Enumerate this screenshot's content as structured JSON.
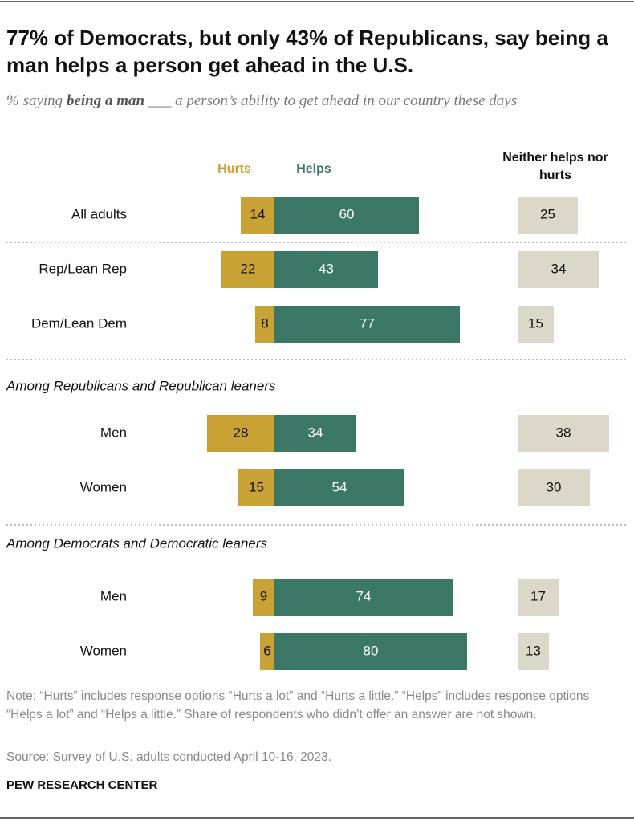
{
  "chart_data": {
    "type": "bar",
    "title": "77% of Democrats, but only 43% of Republicans, say being a man helps a person get ahead in the U.S.",
    "subtitle": [
      "% saying ",
      "being a man",
      " ___ a person’s ability to get ahead in our country these days"
    ],
    "categories": [
      "All adults",
      "Rep/Lean Rep",
      "Dem/Lean Dem",
      "Men",
      "Women",
      "Men",
      "Women"
    ],
    "group_headings": [
      "Among Republicans and Republican leaners",
      "Among Democrats and Democratic leaners"
    ],
    "series": [
      {
        "name": "Hurts",
        "color": "#c9a235",
        "values": [
          14,
          22,
          8,
          28,
          15,
          9,
          6
        ]
      },
      {
        "name": "Helps",
        "color": "#3b7866",
        "values": [
          60,
          43,
          77,
          34,
          54,
          74,
          80
        ]
      },
      {
        "name": "Neither helps nor hurts",
        "color": "#dcd8c9",
        "values": [
          25,
          34,
          15,
          38,
          30,
          17,
          13
        ]
      }
    ],
    "note": "Note: “Hurts” includes response options “Hurts a lot” and “Hurts a little.” “Helps” includes response options “Helps a lot” and “Helps a little.” Share of respondents who didn’t offer an answer are not shown.",
    "source": "Source: Survey of U.S. adults conducted April 10-16, 2023.",
    "brand": "PEW RESEARCH CENTER"
  }
}
